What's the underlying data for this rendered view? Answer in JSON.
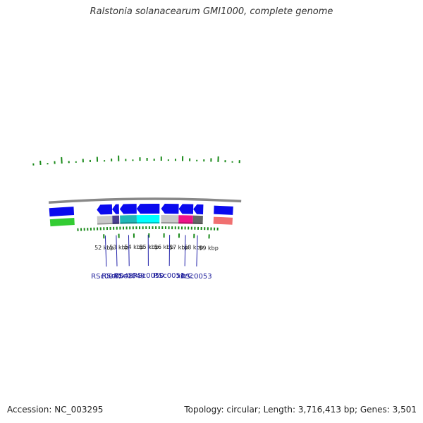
{
  "header": {
    "title": "Ralstonia solanacearum GMI1000, complete genome"
  },
  "footer": {
    "accession": "Accession: NC_003295",
    "summary": "Topology: circular; Length: 3,716,413 bp; Genes: 3,501"
  },
  "colors": {
    "background": "#ffffff",
    "backbone": "#888888",
    "cds_strand": "#0a0aee",
    "gc_ticks": "#1a8a1a",
    "label_text": "#1a1a99",
    "leader_line": "#2222aa",
    "tick_label": "#222222"
  },
  "ruler": {
    "unit": "kbp",
    "ticks": [
      {
        "kbp": 52,
        "label": "52 kbp"
      },
      {
        "kbp": 53,
        "label": "53 kbp"
      },
      {
        "kbp": 54,
        "label": "54 kbp"
      },
      {
        "kbp": 55,
        "label": "55 kbp"
      },
      {
        "kbp": 56,
        "label": "56 kbp"
      },
      {
        "kbp": 57,
        "label": "57 kbp"
      },
      {
        "kbp": 58,
        "label": "58 kbp"
      },
      {
        "kbp": 59,
        "label": "59 kbp"
      }
    ]
  },
  "genes": [
    {
      "label": "RSc0047",
      "start_kbp": 51.6,
      "end_kbp": 52.6,
      "strand": "reverse",
      "category_color": "#c8c8c8"
    },
    {
      "label": "RSc0048",
      "start_kbp": 52.6,
      "end_kbp": 53.05,
      "strand": "reverse",
      "category_color": "#4a3f8f"
    },
    {
      "label": "RSc0049",
      "start_kbp": 53.1,
      "end_kbp": 54.2,
      "strand": "reverse",
      "category_color": "#20b8b8"
    },
    {
      "label": "RSc0050",
      "start_kbp": 54.2,
      "end_kbp": 55.7,
      "strand": "reverse",
      "category_color": "#00ffff"
    },
    {
      "label": "RSc0051",
      "start_kbp": 55.8,
      "end_kbp": 56.95,
      "strand": "reverse",
      "category_color": "#c8c8c8"
    },
    {
      "label": "xerC",
      "start_kbp": 56.95,
      "end_kbp": 57.9,
      "strand": "reverse",
      "category_color": "#ee1188"
    },
    {
      "label": "RSc0053",
      "start_kbp": 57.9,
      "end_kbp": 58.55,
      "strand": "reverse",
      "category_color": "#666666"
    }
  ],
  "partial_features": [
    {
      "side": "left",
      "category_color": "#33cc33"
    },
    {
      "side": "right",
      "category_color": "#f07070"
    }
  ]
}
